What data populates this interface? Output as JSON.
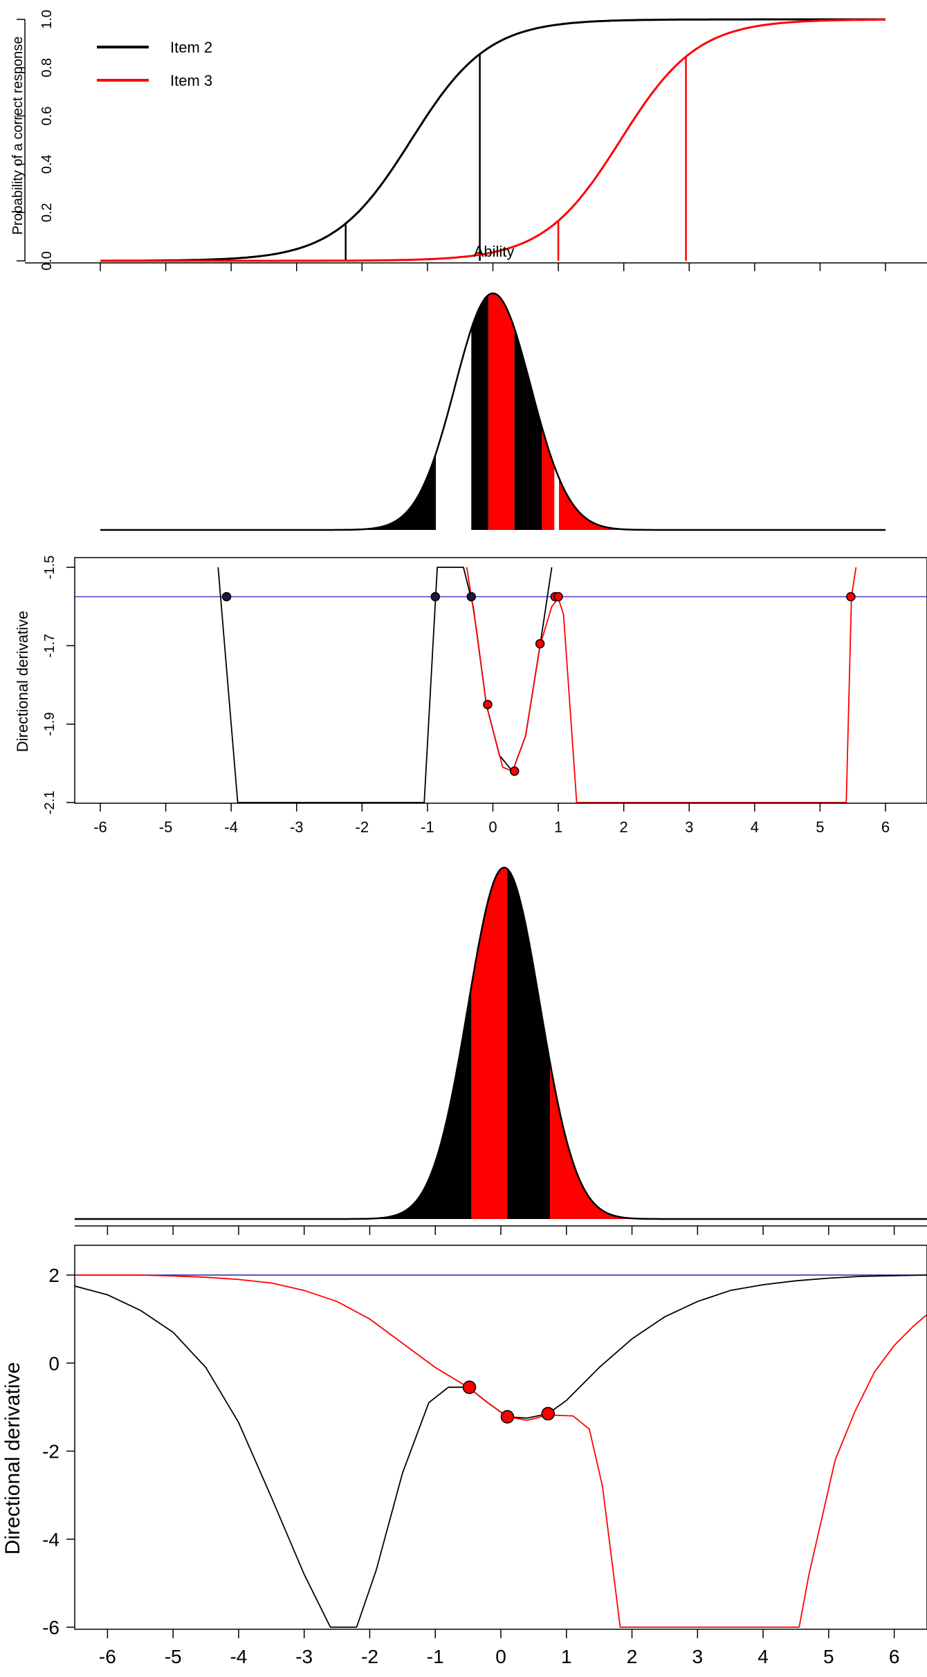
{
  "chart_data": [
    {
      "id": "p1",
      "type": "line",
      "title": "",
      "xlabel": "Ability",
      "ylabel": "Probability of a correct response",
      "xlim": [
        -6,
        6
      ],
      "ylim": [
        0,
        1
      ],
      "yticks": [
        "0.0",
        "0.2",
        "0.4",
        "0.6",
        "0.8",
        "1.0"
      ],
      "legend": {
        "position": "top-left",
        "entries": [
          "Item 2",
          "Item 3"
        ]
      },
      "series": [
        {
          "name": "Item 2",
          "color": "#000000",
          "model": "logistic",
          "slope": 1.7,
          "location": -1.25,
          "verticals_x": [
            -2.25,
            -0.2
          ]
        },
        {
          "name": "Item 3",
          "color": "#ff0000",
          "model": "logistic",
          "slope": 1.7,
          "location": 1.95,
          "verticals_x": [
            1.0,
            2.95
          ]
        }
      ]
    },
    {
      "id": "p2",
      "type": "area",
      "title": "",
      "xlim": [
        -6,
        6
      ],
      "curve": "normal density, mean 0, sd 0.58",
      "bands": [
        {
          "from": -6.0,
          "to": -4.05,
          "color": "#ffffff"
        },
        {
          "from": -4.05,
          "to": -0.87,
          "color": "#000000"
        },
        {
          "from": -0.87,
          "to": -0.33,
          "color": "#ffffff"
        },
        {
          "from": -0.33,
          "to": -0.07,
          "color": "#000000"
        },
        {
          "from": -0.07,
          "to": 0.33,
          "color": "#ff0000"
        },
        {
          "from": 0.33,
          "to": 0.75,
          "color": "#000000"
        },
        {
          "from": 0.75,
          "to": 0.94,
          "color": "#ff0000"
        },
        {
          "from": 0.94,
          "to": 1.01,
          "color": "#ffffff"
        },
        {
          "from": 1.01,
          "to": 5.5,
          "color": "#ff0000"
        },
        {
          "from": 5.5,
          "to": 6.0,
          "color": "#ffffff"
        }
      ]
    },
    {
      "id": "p3",
      "type": "line",
      "title": "",
      "ylabel": "Directional derivative",
      "xlim": [
        -6,
        6
      ],
      "ylim": [
        -2.1,
        -1.5
      ],
      "xticks": [
        "-6",
        "-5",
        "-4",
        "-3",
        "-2",
        "-1",
        "0",
        "1",
        "2",
        "3",
        "4",
        "5",
        "6"
      ],
      "yticks": [
        "-2.1",
        "-1.9",
        "-1.7",
        "-1.5"
      ],
      "reference_line": {
        "y": -1.575,
        "color": "#4040cc"
      },
      "series": [
        {
          "color": "#000000",
          "points": [
            [
              -4.2,
              -1.5
            ],
            [
              -3.9,
              -2.1
            ],
            [
              -1.05,
              -2.1
            ],
            [
              -0.85,
              -1.5
            ],
            [
              -0.45,
              -1.5
            ],
            [
              -0.3,
              -1.6
            ],
            [
              -0.1,
              -1.85
            ],
            [
              0.1,
              -1.98
            ],
            [
              0.3,
              -2.02
            ],
            [
              0.5,
              -1.93
            ],
            [
              0.72,
              -1.7
            ],
            [
              0.9,
              -1.5
            ]
          ]
        },
        {
          "color": "#ff0000",
          "points": [
            [
              -0.4,
              -1.5
            ],
            [
              -0.25,
              -1.66
            ],
            [
              -0.1,
              -1.85
            ],
            [
              0.15,
              -2.01
            ],
            [
              0.3,
              -2.02
            ],
            [
              0.5,
              -1.93
            ],
            [
              0.72,
              -1.7
            ],
            [
              0.9,
              -1.6
            ],
            [
              1.0,
              -1.58
            ],
            [
              1.08,
              -1.62
            ],
            [
              1.28,
              -2.1
            ],
            [
              5.4,
              -2.1
            ],
            [
              5.48,
              -1.575
            ],
            [
              5.55,
              -1.5
            ]
          ]
        }
      ],
      "markers": [
        {
          "x": -4.07,
          "y": -1.575,
          "color": "#1a1a40"
        },
        {
          "x": -0.88,
          "y": -1.575,
          "color": "#1a1a40"
        },
        {
          "x": -0.33,
          "y": -1.575,
          "color": "#1a1a40"
        },
        {
          "x": 0.95,
          "y": -1.575,
          "color": "#ff0000"
        },
        {
          "x": 1.0,
          "y": -1.575,
          "color": "#ff0000"
        },
        {
          "x": 5.47,
          "y": -1.575,
          "color": "#ff0000"
        },
        {
          "x": -0.08,
          "y": -1.85,
          "color": "#ff0000"
        },
        {
          "x": 0.33,
          "y": -2.02,
          "color": "#ff0000"
        },
        {
          "x": 0.72,
          "y": -1.695,
          "color": "#ff0000"
        }
      ]
    },
    {
      "id": "p4",
      "type": "area",
      "title": "",
      "xlim": [
        -6.5,
        6.5
      ],
      "curve": "normal density, mean 0.05, sd 0.55",
      "bands": [
        {
          "from": -6.5,
          "to": -0.45,
          "color": "#000000"
        },
        {
          "from": -0.45,
          "to": 0.1,
          "color": "#ff0000"
        },
        {
          "from": 0.1,
          "to": 0.75,
          "color": "#000000"
        },
        {
          "from": 0.75,
          "to": 6.5,
          "color": "#ff0000"
        }
      ]
    },
    {
      "id": "p5",
      "type": "line",
      "title": "",
      "ylabel": "Directional derivative",
      "xlim": [
        -6.5,
        6.5
      ],
      "ylim": [
        -6,
        2
      ],
      "xticks": [
        "-6",
        "-5",
        "-4",
        "-3",
        "-2",
        "-1",
        "0",
        "1",
        "2",
        "3",
        "4",
        "5",
        "6"
      ],
      "yticks": [
        "-6",
        "-4",
        "-2",
        "0",
        "2"
      ],
      "reference_line": {
        "y": 2,
        "color": "#2020aa"
      },
      "series": [
        {
          "color": "#000000",
          "points": [
            [
              -6.5,
              1.75
            ],
            [
              -6.0,
              1.55
            ],
            [
              -5.5,
              1.2
            ],
            [
              -5.0,
              0.7
            ],
            [
              -4.5,
              -0.1
            ],
            [
              -4.0,
              -1.35
            ],
            [
              -3.5,
              -3.05
            ],
            [
              -3.0,
              -4.8
            ],
            [
              -2.6,
              -6.0
            ],
            [
              -2.2,
              -6.0
            ],
            [
              -1.9,
              -4.7
            ],
            [
              -1.5,
              -2.5
            ],
            [
              -1.1,
              -0.9
            ],
            [
              -0.8,
              -0.55
            ],
            [
              -0.5,
              -0.55
            ],
            [
              -0.2,
              -0.9
            ],
            [
              0.1,
              -1.22
            ],
            [
              0.4,
              -1.25
            ],
            [
              0.72,
              -1.15
            ],
            [
              1.0,
              -0.85
            ],
            [
              1.5,
              -0.1
            ],
            [
              2.0,
              0.55
            ],
            [
              2.5,
              1.05
            ],
            [
              3.0,
              1.4
            ],
            [
              3.5,
              1.65
            ],
            [
              4.0,
              1.78
            ],
            [
              4.5,
              1.87
            ],
            [
              5.0,
              1.93
            ],
            [
              5.5,
              1.97
            ],
            [
              6.5,
              2.0
            ]
          ]
        },
        {
          "color": "#ff0000",
          "points": [
            [
              -6.5,
              2.0
            ],
            [
              -5.5,
              2.0
            ],
            [
              -5.0,
              1.98
            ],
            [
              -4.5,
              1.95
            ],
            [
              -4.0,
              1.9
            ],
            [
              -3.5,
              1.82
            ],
            [
              -3.0,
              1.65
            ],
            [
              -2.5,
              1.4
            ],
            [
              -2.0,
              1.0
            ],
            [
              -1.5,
              0.45
            ],
            [
              -1.0,
              -0.1
            ],
            [
              -0.5,
              -0.55
            ],
            [
              -0.2,
              -0.9
            ],
            [
              0.1,
              -1.22
            ],
            [
              0.4,
              -1.3
            ],
            [
              0.72,
              -1.18
            ],
            [
              1.1,
              -1.2
            ],
            [
              1.35,
              -1.5
            ],
            [
              1.55,
              -2.8
            ],
            [
              1.72,
              -4.8
            ],
            [
              1.82,
              -6.0
            ],
            [
              4.55,
              -6.0
            ],
            [
              4.7,
              -4.8
            ],
            [
              4.9,
              -3.5
            ],
            [
              5.1,
              -2.2
            ],
            [
              5.4,
              -1.1
            ],
            [
              5.7,
              -0.2
            ],
            [
              6.0,
              0.4
            ],
            [
              6.3,
              0.85
            ],
            [
              6.5,
              1.1
            ]
          ]
        }
      ],
      "markers": [
        {
          "x": -0.48,
          "y": -0.55,
          "color": "#ff0000"
        },
        {
          "x": 0.1,
          "y": -1.22,
          "color": "#ff0000"
        },
        {
          "x": 0.72,
          "y": -1.15,
          "color": "#ff0000"
        }
      ]
    }
  ]
}
